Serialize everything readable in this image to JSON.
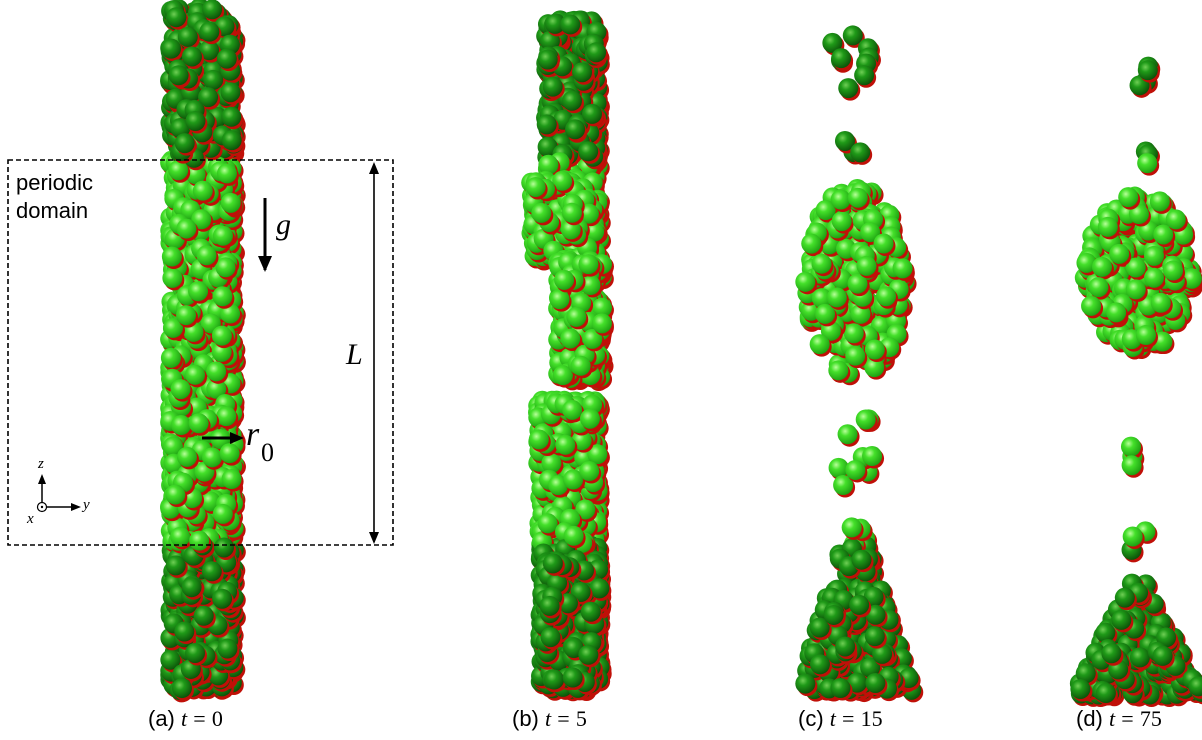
{
  "annotations": {
    "domain_line1": "periodic",
    "domain_line2": "domain",
    "gravity": "g",
    "length": "L",
    "radius_symbol": "r",
    "radius_subscript": "0",
    "axis_z": "z",
    "axis_y": "y",
    "axis_x": "x"
  },
  "panels": [
    {
      "letter": "(a)",
      "var": "t",
      "eq": "=",
      "value": "0"
    },
    {
      "letter": "(b)",
      "var": "t",
      "eq": "=",
      "value": "5"
    },
    {
      "letter": "(c)",
      "var": "t",
      "eq": "=",
      "value": "15"
    },
    {
      "letter": "(d)",
      "var": "t",
      "eq": "=",
      "value": "75"
    }
  ],
  "colors": {
    "particle_light": "#33dd22",
    "particle_dark": "#127a10",
    "particle_tip": "#c01008",
    "outline": "#000000"
  }
}
